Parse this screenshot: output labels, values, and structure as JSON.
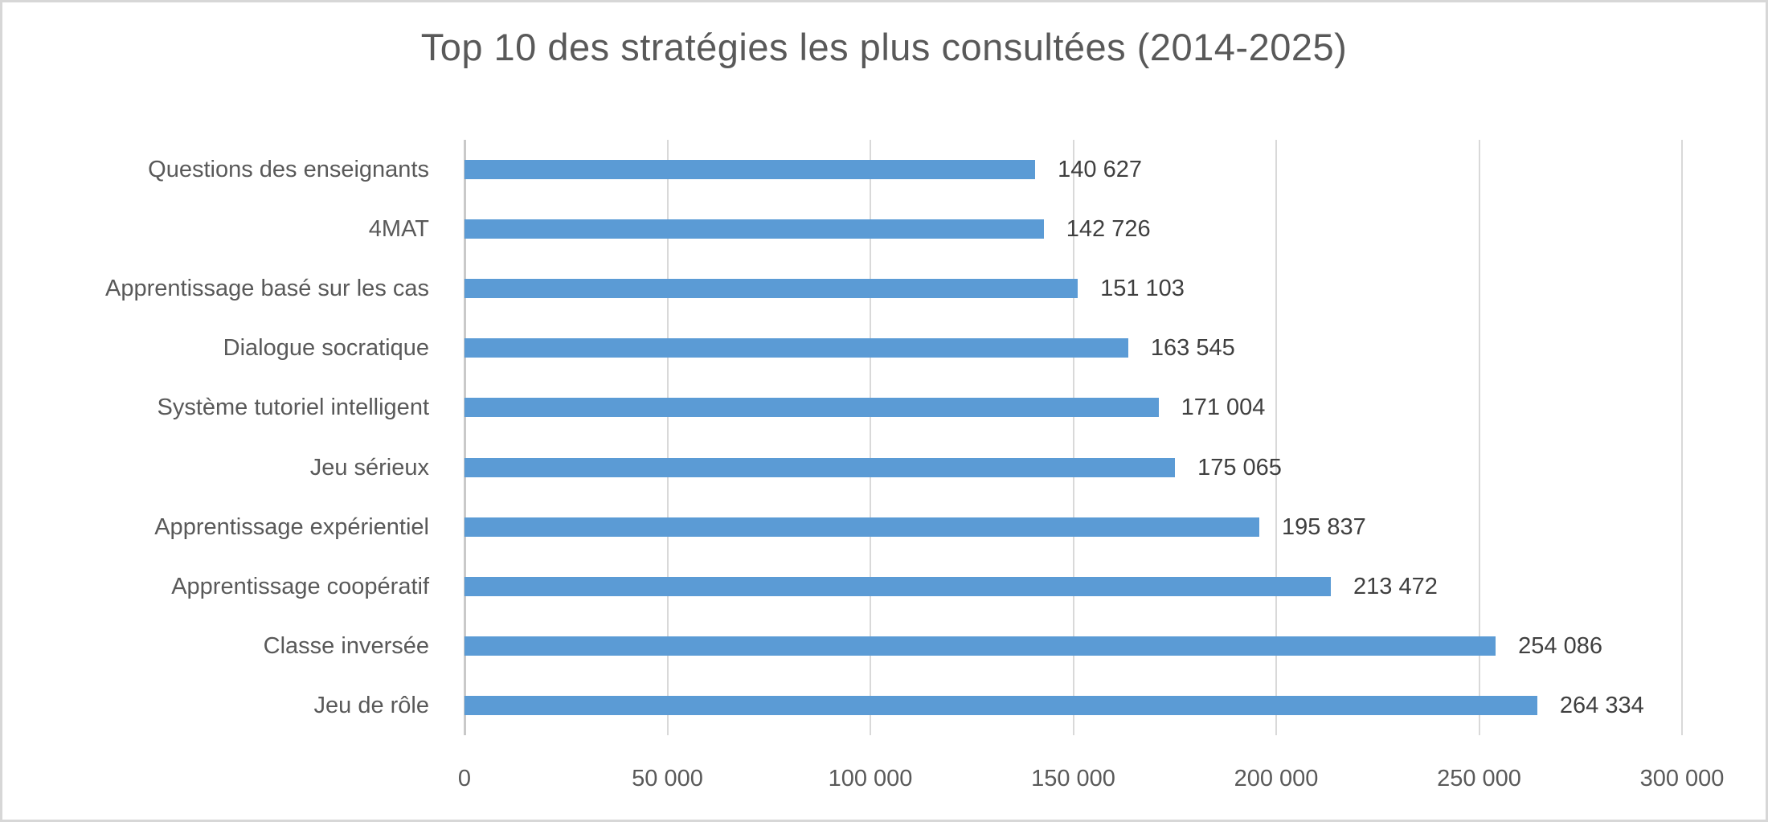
{
  "chart_data": {
    "type": "bar",
    "orientation": "horizontal",
    "title": "Top 10 des stratégies les plus consultées (2014-2025)",
    "categories": [
      "Questions des enseignants",
      "4MAT",
      "Apprentissage basé sur les cas",
      "Dialogue socratique",
      "Système tutoriel intelligent",
      "Jeu sérieux",
      "Apprentissage expérientiel",
      "Apprentissage coopératif",
      "Classe inversée",
      "Jeu de rôle"
    ],
    "values": [
      140627,
      142726,
      151103,
      163545,
      171004,
      175065,
      195837,
      213472,
      254086,
      264334
    ],
    "value_labels": [
      "140 627",
      "142 726",
      "151 103",
      "163 545",
      "171 004",
      "175 065",
      "195 837",
      "213 472",
      "254 086",
      "264 334"
    ],
    "x_ticks": [
      "0",
      "50 000",
      "100 000",
      "150 000",
      "200 000",
      "250 000",
      "300 000"
    ],
    "x_tick_values": [
      0,
      50000,
      100000,
      150000,
      200000,
      250000,
      300000
    ],
    "xlim": [
      0,
      300000
    ],
    "xlabel": "",
    "ylabel": "",
    "grid": true,
    "legend": false,
    "colors": {
      "bar": "#5b9bd5",
      "title": "#595959",
      "category_label": "#595959",
      "value_label": "#3f3f3f",
      "tick_label": "#595959",
      "gridline": "#d9d9d9",
      "frame_border": "#d7d7d7",
      "background": "#ffffff"
    }
  }
}
